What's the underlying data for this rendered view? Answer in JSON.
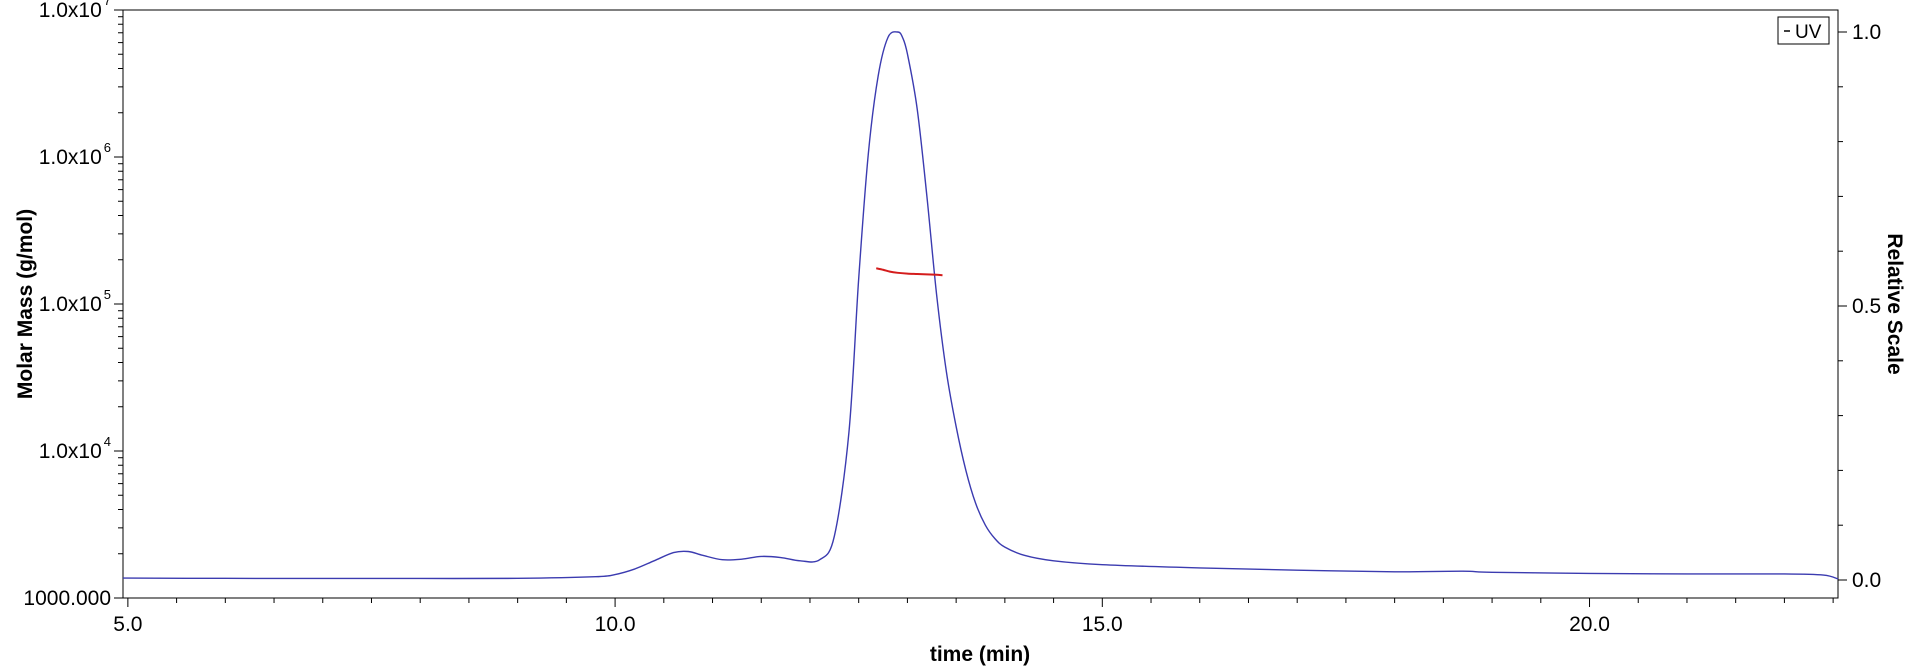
{
  "chart_data": {
    "type": "line",
    "xlabel": "time (min)",
    "ylabel_left": "Molar Mass (g/mol)",
    "ylabel_right": "Relative Scale",
    "xlim": [
      4.95,
      22.55
    ],
    "ylim_left": [
      1000,
      10000000
    ],
    "ylim_right": [
      0,
      1.0
    ],
    "y_left_scale": "log",
    "x_ticks": [
      5.0,
      10.0,
      15.0,
      20.0
    ],
    "x_tick_labels": [
      "5.0",
      "10.0",
      "15.0",
      "20.0"
    ],
    "y_left_ticks": [
      {
        "value": 1000,
        "base": "1000.000",
        "exp": ""
      },
      {
        "value": 10000,
        "base": "1.0x10",
        "exp": "4"
      },
      {
        "value": 100000,
        "base": "1.0x10",
        "exp": "5"
      },
      {
        "value": 1000000,
        "base": "1.0x10",
        "exp": "6"
      },
      {
        "value": 10000000,
        "base": "1.0x10",
        "exp": "7"
      }
    ],
    "y_right_ticks": [
      0.0,
      0.5,
      1.0
    ],
    "y_right_tick_labels": [
      "0.0",
      "0.5",
      "1.0"
    ],
    "legend": {
      "label": "UV",
      "placement": "top-right"
    },
    "series": [
      {
        "name": "UV",
        "axis": "right",
        "color": "#3b3bb0",
        "x": [
          4.95,
          6.0,
          7.0,
          8.0,
          9.0,
          9.8,
          10.0,
          10.2,
          10.4,
          10.6,
          10.75,
          10.9,
          11.1,
          11.3,
          11.5,
          11.7,
          11.9,
          12.1,
          12.25,
          12.4,
          12.5,
          12.6,
          12.7,
          12.8,
          12.9,
          12.95,
          13.0,
          13.1,
          13.2,
          13.3,
          13.4,
          13.5,
          13.6,
          13.7,
          13.8,
          13.9,
          14.0,
          14.2,
          14.5,
          15.0,
          16.0,
          17.0,
          18.0,
          18.7,
          19.0,
          20.0,
          21.0,
          22.0,
          22.4,
          22.55
        ],
        "y": [
          0.0035,
          0.003,
          0.0028,
          0.0028,
          0.003,
          0.006,
          0.01,
          0.02,
          0.035,
          0.05,
          0.052,
          0.045,
          0.037,
          0.038,
          0.043,
          0.041,
          0.035,
          0.037,
          0.08,
          0.27,
          0.55,
          0.78,
          0.92,
          0.99,
          1.0,
          0.99,
          0.96,
          0.86,
          0.7,
          0.52,
          0.38,
          0.28,
          0.2,
          0.14,
          0.1,
          0.075,
          0.06,
          0.045,
          0.035,
          0.028,
          0.022,
          0.018,
          0.015,
          0.016,
          0.014,
          0.012,
          0.011,
          0.011,
          0.009,
          0.002
        ]
      },
      {
        "name": "Molar Mass",
        "axis": "left",
        "color": "#d41c1c",
        "x": [
          12.68,
          12.75,
          12.82,
          12.9,
          13.0,
          13.1,
          13.2,
          13.3,
          13.36
        ],
        "y": [
          175000,
          171000,
          166000,
          163000,
          161000,
          160000,
          159000,
          158000,
          157000
        ]
      }
    ]
  }
}
